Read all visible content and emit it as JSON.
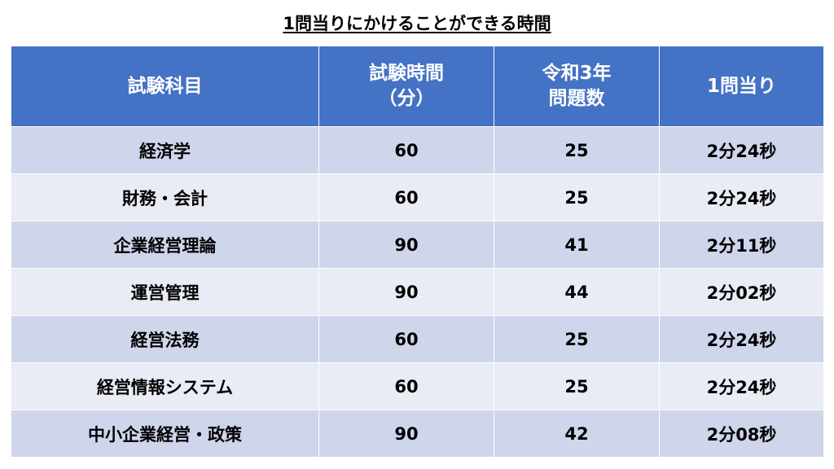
{
  "title": "1問当りにかけることができる時間",
  "header": {
    "subject": "試験科目",
    "exam_time_line1": "試験時間",
    "exam_time_line2": "（分）",
    "question_count_line1": "令和3年",
    "question_count_line2": "問題数",
    "per_question": "1問当り"
  },
  "rows": [
    {
      "subject": "経済学",
      "minutes": "60",
      "questions": "25",
      "per_question": "2分24秒"
    },
    {
      "subject": "財務・会計",
      "minutes": "60",
      "questions": "25",
      "per_question": "2分24秒"
    },
    {
      "subject": "企業経営理論",
      "minutes": "90",
      "questions": "41",
      "per_question": "2分11秒"
    },
    {
      "subject": "運営管理",
      "minutes": "90",
      "questions": "44",
      "per_question": "2分02秒"
    },
    {
      "subject": "経営法務",
      "minutes": "60",
      "questions": "25",
      "per_question": "2分24秒"
    },
    {
      "subject": "経営情報システム",
      "minutes": "60",
      "questions": "25",
      "per_question": "2分24秒"
    },
    {
      "subject": "中小企業経営・政策",
      "minutes": "90",
      "questions": "42",
      "per_question": "2分08秒"
    }
  ],
  "colors": {
    "header_bg": "#4472c4",
    "row_dark": "#cfd5ea",
    "row_light": "#e9ebf5"
  }
}
